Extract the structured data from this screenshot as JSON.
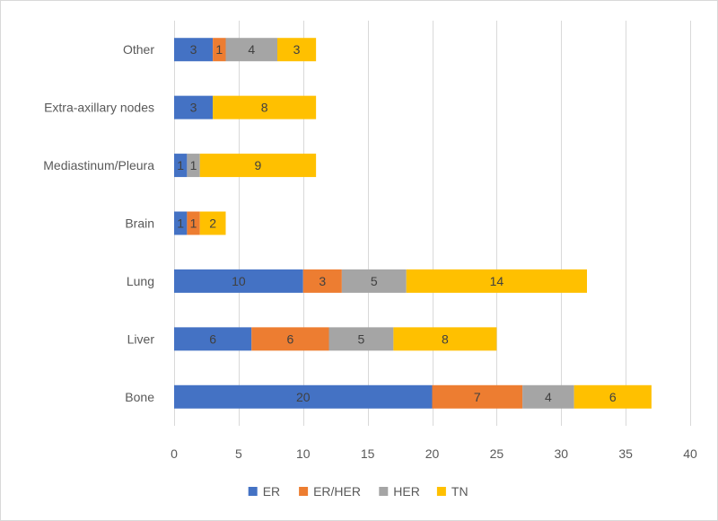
{
  "chart_data": {
    "type": "bar",
    "orientation": "horizontal",
    "stacked": true,
    "categories": [
      "Bone",
      "Liver",
      "Lung",
      "Brain",
      "Mediastinum/Pleura",
      "Extra-axillary nodes",
      "Other"
    ],
    "series": [
      {
        "name": "ER",
        "color": "#4472c4",
        "values": [
          20,
          6,
          10,
          1,
          1,
          3,
          3
        ]
      },
      {
        "name": "ER/HER",
        "color": "#ed7d31",
        "values": [
          7,
          6,
          3,
          1,
          0,
          0,
          1
        ]
      },
      {
        "name": "HER",
        "color": "#a5a5a5",
        "values": [
          4,
          5,
          5,
          0,
          1,
          0,
          4
        ]
      },
      {
        "name": "TN",
        "color": "#ffc000",
        "values": [
          6,
          8,
          14,
          2,
          9,
          8,
          3
        ]
      }
    ],
    "xlim": [
      0,
      40
    ],
    "xticks": [
      0,
      5,
      10,
      15,
      20,
      25,
      30,
      35,
      40
    ],
    "grid": true,
    "legend": "bottom",
    "title": "",
    "xlabel": "",
    "ylabel": ""
  }
}
